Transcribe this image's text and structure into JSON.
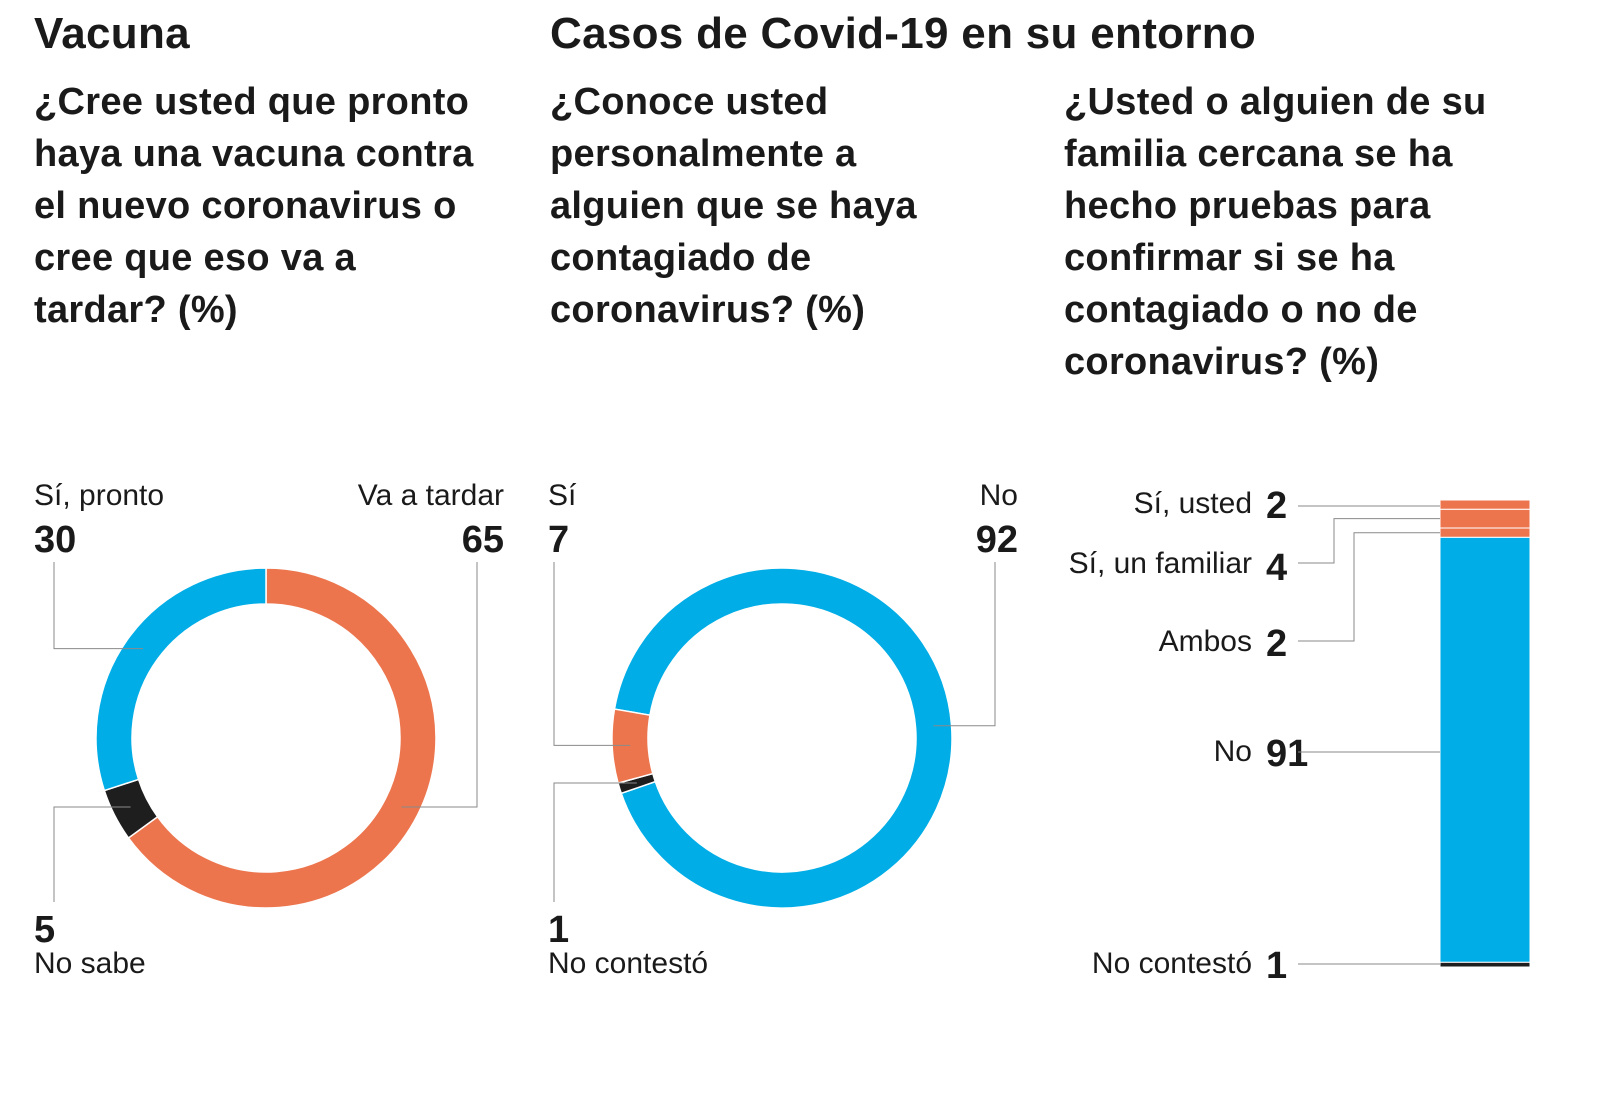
{
  "sections": {
    "vacuna_title": "Vacuna",
    "casos_title": "Casos de Covid-19 en su entorno"
  },
  "questions": {
    "q1": "¿Cree usted que pronto haya una vacuna contra el nuevo coronavirus o cree que eso va a tardar? (%)",
    "q2": "¿Conoce usted personalmente a alguien que se haya contagiado de coronavirus? (%)",
    "q3": "¿Usted o alguien de su familia cercana se ha hecho pruebas para confirmar si se ha contagiado o no de coronavirus? (%)"
  },
  "colors": {
    "blue": "#00ADE6",
    "orange": "#EC754D",
    "black": "#1E1E1E",
    "leader": "#8a8a8a"
  },
  "chart_data": [
    {
      "type": "pie",
      "variant": "donut",
      "categories": [
        "Va a tardar",
        "No sabe",
        "Sí, pronto"
      ],
      "values": [
        65,
        5,
        30
      ],
      "labels_display": {
        "si_pronto": "Sí, pronto",
        "va_a_tardar": "Va a tardar",
        "no_sabe": "No sabe"
      },
      "values_display": {
        "si_pronto": "30",
        "va_a_tardar": "65",
        "no_sabe": "5"
      },
      "colors": [
        "#EC754D",
        "#1E1E1E",
        "#00ADE6"
      ]
    },
    {
      "type": "pie",
      "variant": "donut",
      "categories": [
        "No",
        "No contestó",
        "Sí"
      ],
      "values": [
        92,
        1,
        7
      ],
      "labels_display": {
        "si": "Sí",
        "no": "No",
        "no_contesto": "No contestó"
      },
      "values_display": {
        "si": "7",
        "no": "92",
        "no_contesto": "1"
      },
      "colors": [
        "#00ADE6",
        "#1E1E1E",
        "#EC754D"
      ]
    },
    {
      "type": "bar",
      "variant": "stacked-100",
      "categories": [
        "Sí, usted",
        "Sí, un familiar",
        "Ambos",
        "No",
        "No contestó"
      ],
      "values": [
        2,
        4,
        2,
        91,
        1
      ],
      "values_display": [
        "2",
        "4",
        "2",
        "91",
        "1"
      ],
      "colors": [
        "#EC754D",
        "#EC754D",
        "#EC754D",
        "#00ADE6",
        "#1E1E1E"
      ]
    }
  ]
}
